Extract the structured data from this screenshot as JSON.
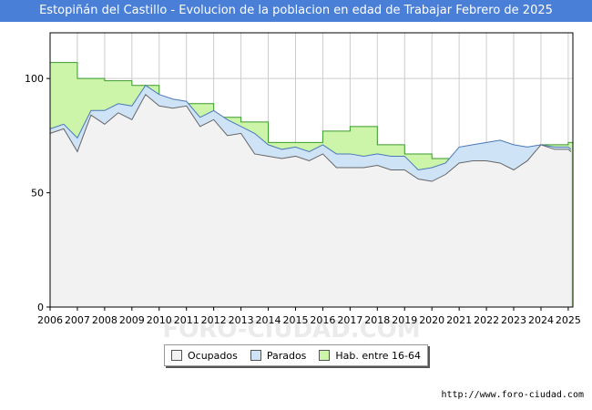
{
  "title": "Estopiñán del Castillo - Evolucion de la poblacion en edad de Trabajar Febrero de 2025",
  "source": "http://www.foro-ciudad.com",
  "watermark": "FORO-CIUDAD.COM",
  "colors": {
    "ocupados_fill": "#f2f2f2",
    "ocupados_line": "#666666",
    "parados_fill": "#cfe3f7",
    "parados_line": "#4a78b8",
    "hab_fill": "#ccf5aa",
    "hab_line": "#3a9a2a",
    "grid": "#cccccc"
  },
  "legend": [
    {
      "label": "Ocupados",
      "color": "#f2f2f2"
    },
    {
      "label": "Parados",
      "color": "#cfe3f7"
    },
    {
      "label": "Hab. entre 16-64",
      "color": "#ccf5aa"
    }
  ],
  "chart_data": {
    "type": "area",
    "title": "Estopiñán del Castillo - Evolucion de la poblacion en edad de Trabajar Febrero de 2025",
    "xlabel": "",
    "ylabel": "",
    "xlim": [
      2006,
      2025.17
    ],
    "ylim": [
      0,
      120
    ],
    "y_ticks": [
      0,
      50,
      100
    ],
    "x_ticks": [
      2006,
      2007,
      2008,
      2009,
      2010,
      2011,
      2012,
      2013,
      2014,
      2015,
      2016,
      2017,
      2018,
      2019,
      2020,
      2021,
      2022,
      2023,
      2024,
      2025
    ],
    "series": [
      {
        "name": "Hab. entre 16-64",
        "step": true,
        "x": [
          2006,
          2007,
          2008,
          2009,
          2010,
          2011,
          2012,
          2013,
          2014,
          2015,
          2016,
          2017,
          2018,
          2019,
          2020,
          2021,
          2022,
          2023,
          2024,
          2025
        ],
        "values": [
          107,
          100,
          99,
          97,
          88,
          89,
          83,
          81,
          72,
          72,
          77,
          79,
          71,
          67,
          65,
          67,
          68,
          70,
          71,
          72
        ]
      },
      {
        "name": "Parados",
        "x": [
          2006,
          2006.5,
          2007,
          2007.5,
          2008,
          2008.5,
          2009,
          2009.5,
          2010,
          2010.5,
          2011,
          2011.5,
          2012,
          2012.5,
          2013,
          2013.5,
          2014,
          2014.5,
          2015,
          2015.5,
          2016,
          2016.5,
          2017,
          2017.5,
          2018,
          2018.5,
          2019,
          2019.5,
          2020,
          2020.5,
          2021,
          2021.5,
          2022,
          2022.5,
          2023,
          2023.5,
          2024,
          2024.5,
          2025,
          2025.1
        ],
        "values": [
          78,
          80,
          74,
          86,
          86,
          89,
          88,
          97,
          93,
          91,
          90,
          83,
          86,
          82,
          79,
          76,
          71,
          69,
          70,
          68,
          71,
          67,
          67,
          66,
          67,
          66,
          66,
          60,
          61,
          63,
          70,
          71,
          72,
          73,
          71,
          70,
          71,
          70,
          70,
          69
        ]
      },
      {
        "name": "Ocupados",
        "x": [
          2006,
          2006.5,
          2007,
          2007.5,
          2008,
          2008.5,
          2009,
          2009.5,
          2010,
          2010.5,
          2011,
          2011.5,
          2012,
          2012.5,
          2013,
          2013.5,
          2014,
          2014.5,
          2015,
          2015.5,
          2016,
          2016.5,
          2017,
          2017.5,
          2018,
          2018.5,
          2019,
          2019.5,
          2020,
          2020.5,
          2021,
          2021.5,
          2022,
          2022.5,
          2023,
          2023.5,
          2024,
          2024.5,
          2025,
          2025.1
        ],
        "values": [
          76,
          78,
          68,
          84,
          80,
          85,
          82,
          93,
          88,
          87,
          88,
          79,
          82,
          75,
          76,
          67,
          66,
          65,
          66,
          64,
          67,
          61,
          61,
          61,
          62,
          60,
          60,
          56,
          55,
          58,
          63,
          64,
          64,
          63,
          60,
          64,
          71,
          69,
          69,
          68
        ]
      }
    ]
  }
}
